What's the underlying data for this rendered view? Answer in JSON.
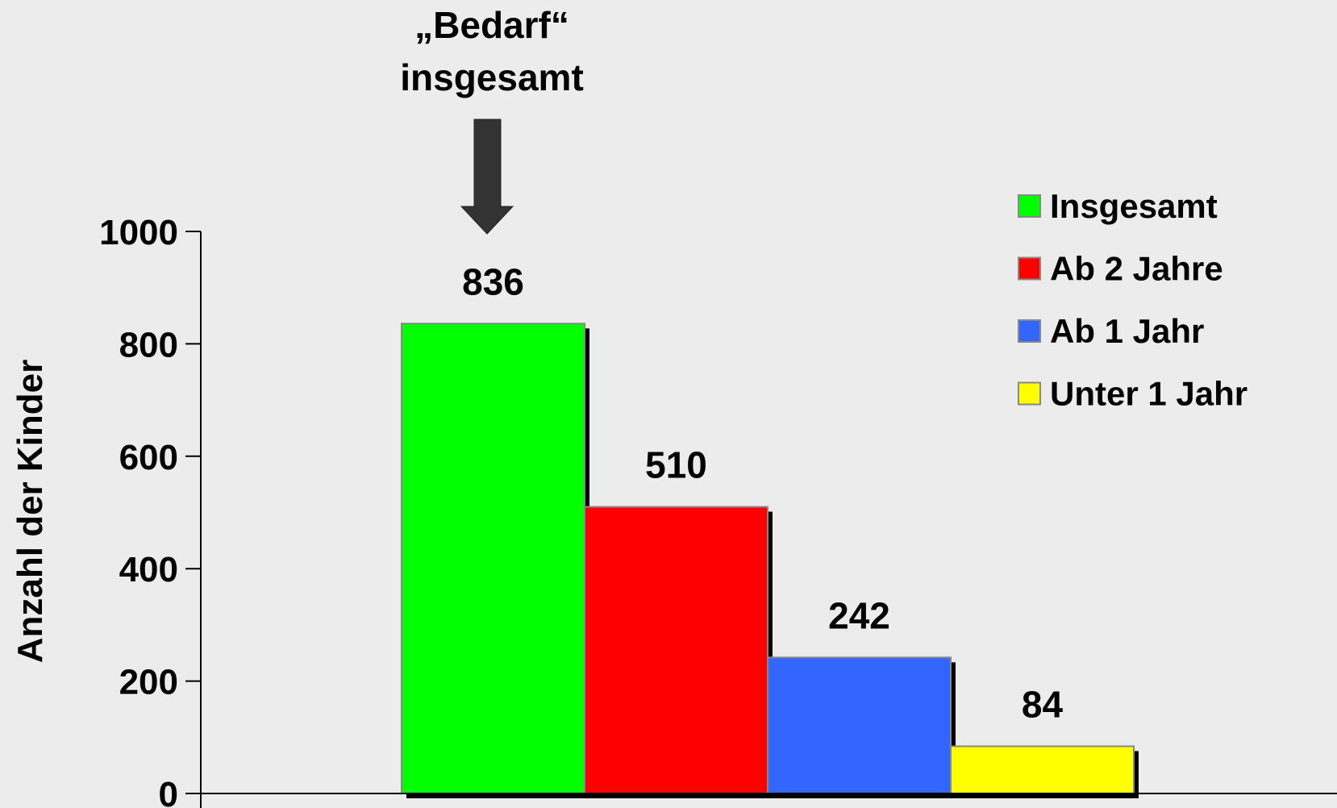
{
  "chart_data": {
    "type": "bar",
    "annotation": [
      "„Bedarf“",
      "insgesamt"
    ],
    "ylabel": "Anzahl der Kinder",
    "categories": [
      null
    ],
    "series": [
      {
        "name": "Insgesamt",
        "color": "#00ff00",
        "values": [
          836
        ]
      },
      {
        "name": "Ab 2 Jahre",
        "color": "#ff0000",
        "values": [
          510
        ]
      },
      {
        "name": "Ab 1 Jahr",
        "color": "#3366ff",
        "values": [
          242
        ]
      },
      {
        "name": "Unter 1 Jahr",
        "color": "#ffff00",
        "values": [
          84
        ]
      }
    ],
    "ylim": [
      0,
      1000
    ],
    "yticks": [
      0,
      200,
      400,
      600,
      800,
      1000
    ],
    "grid": false,
    "legend": "upper right"
  }
}
